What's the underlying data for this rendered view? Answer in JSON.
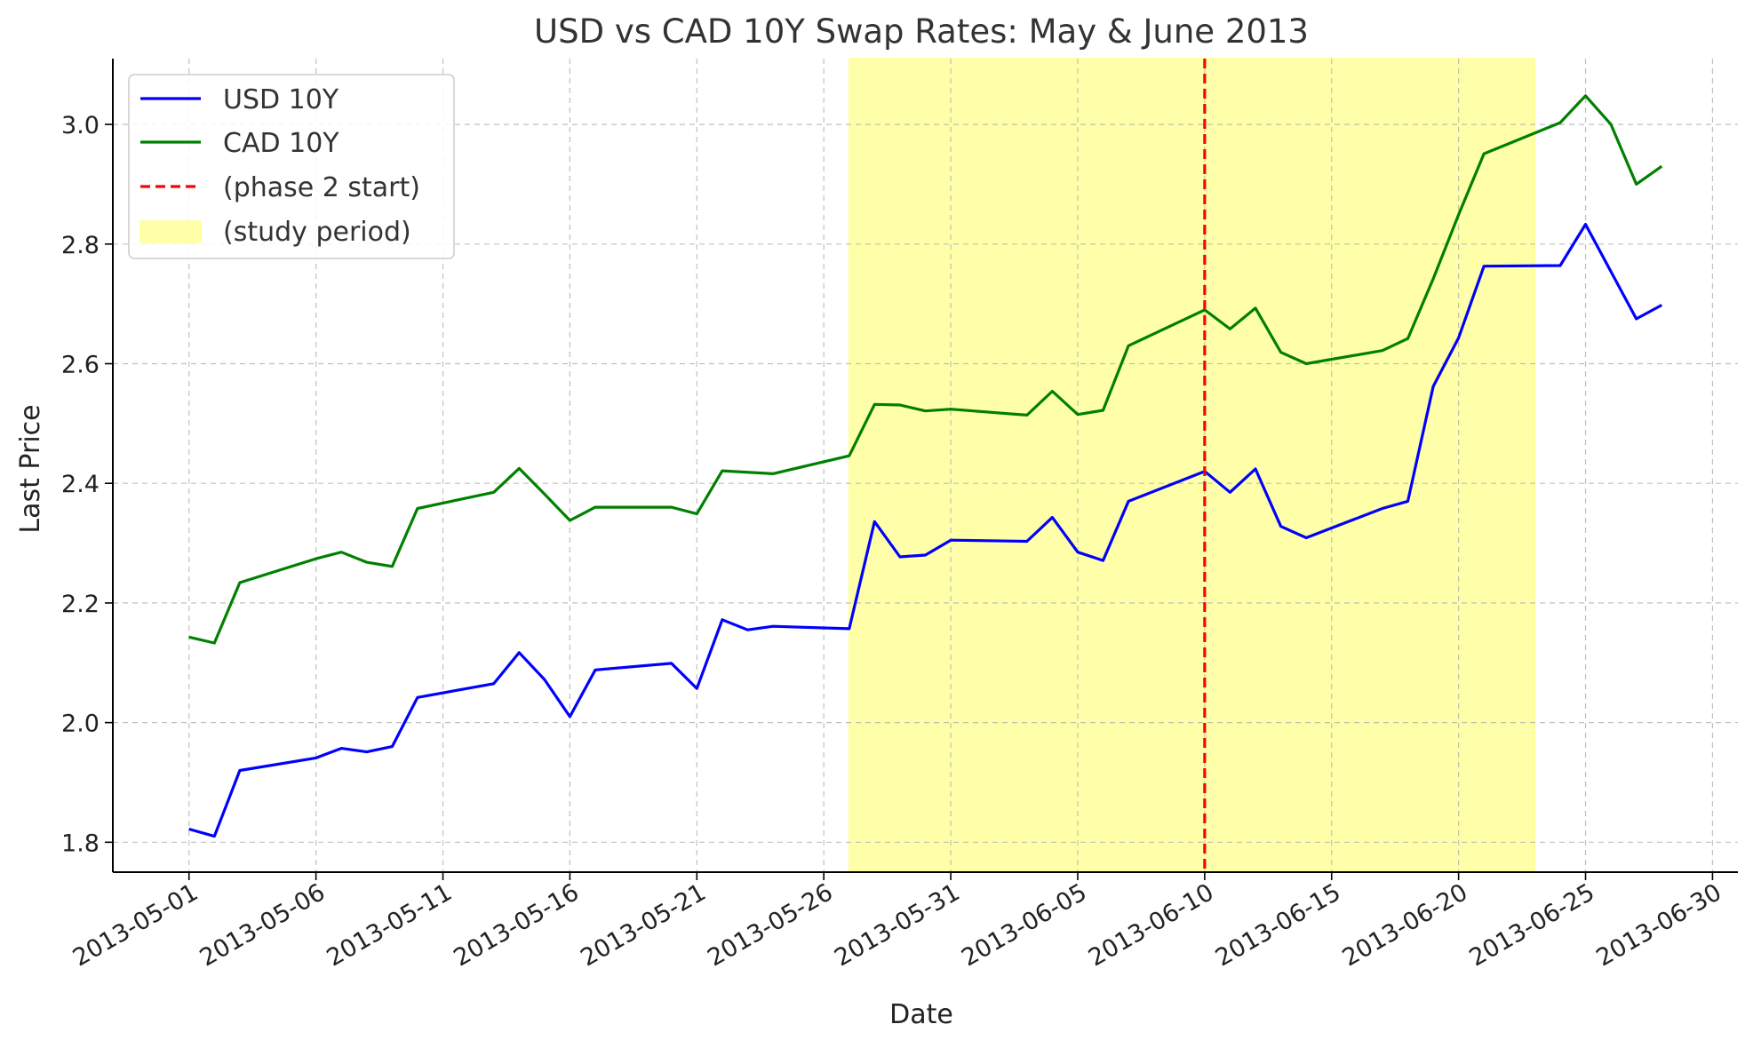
{
  "chart_data": {
    "type": "line",
    "title": "USD vs CAD 10Y Swap Rates: May & June 2013",
    "xlabel": "Date",
    "ylabel": "Last Price",
    "x_range": [
      "2013-04-28",
      "2013-07-01"
    ],
    "ylim": [
      1.75,
      3.11
    ],
    "y_ticks": [
      1.8,
      2.0,
      2.2,
      2.4,
      2.6,
      2.8,
      3.0
    ],
    "x_ticks": [
      "2013-05-01",
      "2013-05-06",
      "2013-05-11",
      "2013-05-16",
      "2013-05-21",
      "2013-05-26",
      "2013-05-31",
      "2013-06-05",
      "2013-06-10",
      "2013-06-15",
      "2013-06-20",
      "2013-06-25",
      "2013-06-30"
    ],
    "grid": true,
    "legend_position": "top-left",
    "series": [
      {
        "name": "USD 10Y",
        "color": "#0000ff",
        "points": [
          [
            "2013-05-01",
            1.822
          ],
          [
            "2013-05-02",
            1.81
          ],
          [
            "2013-05-03",
            1.92
          ],
          [
            "2013-05-06",
            1.941
          ],
          [
            "2013-05-07",
            1.957
          ],
          [
            "2013-05-08",
            1.951
          ],
          [
            "2013-05-09",
            1.96
          ],
          [
            "2013-05-10",
            2.042
          ],
          [
            "2013-05-13",
            2.065
          ],
          [
            "2013-05-14",
            2.117
          ],
          [
            "2013-05-15",
            2.072
          ],
          [
            "2013-05-16",
            2.01
          ],
          [
            "2013-05-17",
            2.088
          ],
          [
            "2013-05-20",
            2.099
          ],
          [
            "2013-05-21",
            2.057
          ],
          [
            "2013-05-22",
            2.172
          ],
          [
            "2013-05-23",
            2.155
          ],
          [
            "2013-05-24",
            2.161
          ],
          [
            "2013-05-27",
            2.157
          ],
          [
            "2013-05-28",
            2.336
          ],
          [
            "2013-05-29",
            2.277
          ],
          [
            "2013-05-30",
            2.28
          ],
          [
            "2013-05-31",
            2.305
          ],
          [
            "2013-06-03",
            2.303
          ],
          [
            "2013-06-04",
            2.343
          ],
          [
            "2013-06-05",
            2.285
          ],
          [
            "2013-06-06",
            2.271
          ],
          [
            "2013-06-07",
            2.37
          ],
          [
            "2013-06-10",
            2.42
          ],
          [
            "2013-06-11",
            2.385
          ],
          [
            "2013-06-12",
            2.424
          ],
          [
            "2013-06-13",
            2.328
          ],
          [
            "2013-06-14",
            2.309
          ],
          [
            "2013-06-17",
            2.358
          ],
          [
            "2013-06-18",
            2.37
          ],
          [
            "2013-06-19",
            2.562
          ],
          [
            "2013-06-20",
            2.643
          ],
          [
            "2013-06-21",
            2.763
          ],
          [
            "2013-06-24",
            2.764
          ],
          [
            "2013-06-25",
            2.833
          ],
          [
            "2013-06-26",
            2.754
          ],
          [
            "2013-06-27",
            2.675
          ],
          [
            "2013-06-28",
            2.698
          ]
        ]
      },
      {
        "name": "CAD 10Y",
        "color": "#008000",
        "points": [
          [
            "2013-05-01",
            2.143
          ],
          [
            "2013-05-02",
            2.133
          ],
          [
            "2013-05-03",
            2.234
          ],
          [
            "2013-05-06",
            2.274
          ],
          [
            "2013-05-07",
            2.285
          ],
          [
            "2013-05-08",
            2.268
          ],
          [
            "2013-05-09",
            2.261
          ],
          [
            "2013-05-10",
            2.358
          ],
          [
            "2013-05-13",
            2.385
          ],
          [
            "2013-05-14",
            2.425
          ],
          [
            "2013-05-15",
            2.382
          ],
          [
            "2013-05-16",
            2.338
          ],
          [
            "2013-05-17",
            2.36
          ],
          [
            "2013-05-20",
            2.36
          ],
          [
            "2013-05-21",
            2.349
          ],
          [
            "2013-05-22",
            2.421
          ],
          [
            "2013-05-24",
            2.416
          ],
          [
            "2013-05-27",
            2.446
          ],
          [
            "2013-05-28",
            2.532
          ],
          [
            "2013-05-29",
            2.531
          ],
          [
            "2013-05-30",
            2.521
          ],
          [
            "2013-05-31",
            2.524
          ],
          [
            "2013-06-03",
            2.514
          ],
          [
            "2013-06-04",
            2.554
          ],
          [
            "2013-06-05",
            2.515
          ],
          [
            "2013-06-06",
            2.522
          ],
          [
            "2013-06-07",
            2.63
          ],
          [
            "2013-06-10",
            2.69
          ],
          [
            "2013-06-11",
            2.658
          ],
          [
            "2013-06-12",
            2.693
          ],
          [
            "2013-06-13",
            2.619
          ],
          [
            "2013-06-14",
            2.6
          ],
          [
            "2013-06-17",
            2.622
          ],
          [
            "2013-06-18",
            2.642
          ],
          [
            "2013-06-19",
            2.742
          ],
          [
            "2013-06-20",
            2.849
          ],
          [
            "2013-06-21",
            2.951
          ],
          [
            "2013-06-24",
            3.003
          ],
          [
            "2013-06-25",
            3.048
          ],
          [
            "2013-06-26",
            3.0
          ],
          [
            "2013-06-27",
            2.9
          ],
          [
            "2013-06-28",
            2.93
          ]
        ]
      }
    ],
    "annotations": [
      {
        "type": "vline",
        "label": "(phase 2 start)",
        "x": "2013-06-10",
        "color": "#ff0000",
        "style": "dashed"
      },
      {
        "type": "span",
        "label": "(study period)",
        "x_start": "2013-05-27",
        "x_end": "2013-06-23",
        "color": "#ffffaa"
      }
    ]
  }
}
